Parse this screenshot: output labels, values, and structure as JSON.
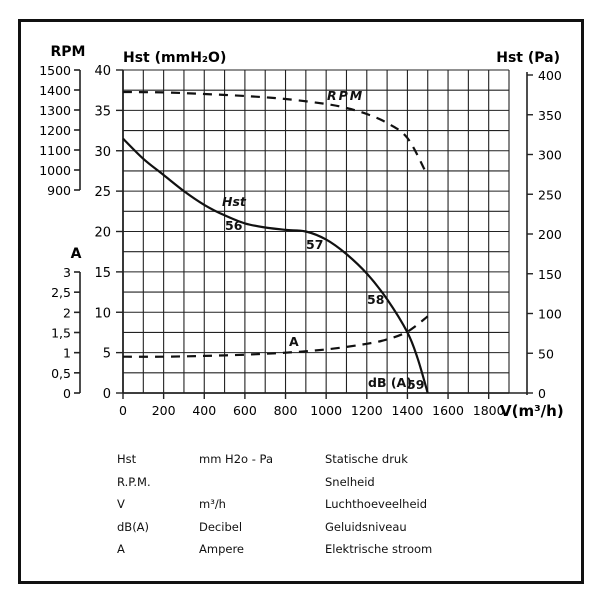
{
  "chart_data": {
    "type": "line",
    "title": "",
    "xlabel": "V(m³/h)",
    "x_ticks": [
      0,
      200,
      400,
      600,
      800,
      1000,
      1200,
      1400,
      1600,
      1800
    ],
    "xlim": [
      0,
      1900
    ],
    "grid": true,
    "axes": {
      "left_primary": {
        "label": "Hst (mmH₂O)",
        "ticks": [
          0,
          5,
          10,
          15,
          20,
          25,
          30,
          35,
          40
        ],
        "range": [
          0,
          40
        ]
      },
      "right": {
        "label": "Hst (Pa)",
        "ticks": [
          0,
          50,
          100,
          150,
          200,
          250,
          300,
          350,
          400
        ],
        "range": [
          0,
          400
        ]
      },
      "left_rpm": {
        "label": "RPM",
        "ticks": [
          900,
          1000,
          1100,
          1200,
          1300,
          1400,
          1500
        ],
        "tick_labels": [
          "900",
          "1000",
          "1100",
          "1200",
          "1300",
          "1400",
          "1500"
        ],
        "range": [
          900,
          1500
        ]
      },
      "left_amp": {
        "label": "A",
        "ticks": [
          0,
          0.5,
          1,
          1.5,
          2,
          2.5,
          3
        ],
        "tick_labels": [
          "0",
          "0,5",
          "1",
          "1,5",
          "2",
          "2,5",
          "3"
        ],
        "range": [
          0,
          3
        ]
      }
    },
    "series": [
      {
        "name": "Hst",
        "axis": "left_primary",
        "style": "solid",
        "x": [
          0,
          100,
          200,
          300,
          400,
          500,
          600,
          700,
          800,
          900,
          1000,
          1100,
          1200,
          1300,
          1400,
          1450,
          1500
        ],
        "values": [
          31.5,
          29.0,
          27.0,
          25.0,
          23.3,
          22.0,
          21.0,
          20.5,
          20.2,
          20.0,
          19.0,
          17.2,
          14.8,
          11.6,
          7.5,
          4.3,
          0
        ]
      },
      {
        "name": "RPM",
        "axis": "left_rpm",
        "style": "dashed",
        "x": [
          0,
          200,
          400,
          600,
          800,
          1000,
          1100,
          1200,
          1300,
          1400,
          1490
        ],
        "values": [
          1390,
          1388,
          1380,
          1370,
          1355,
          1330,
          1310,
          1280,
          1235,
          1160,
          990
        ]
      },
      {
        "name": "A",
        "axis": "left_amp",
        "style": "dashed",
        "x": [
          0,
          200,
          400,
          600,
          800,
          1000,
          1200,
          1300,
          1400,
          1500
        ],
        "values": [
          0.9,
          0.9,
          0.92,
          0.95,
          1.0,
          1.08,
          1.22,
          1.33,
          1.52,
          1.9
        ]
      }
    ],
    "annotations": [
      {
        "text": "Hst",
        "x": 550,
        "y": 23
      },
      {
        "text": "56",
        "x": 530,
        "y": 20.5
      },
      {
        "text": "57",
        "x": 930,
        "y": 18.5
      },
      {
        "text": "58",
        "x": 1230,
        "y": 11.5
      },
      {
        "text": "59",
        "x": 1420,
        "y": 0.8
      },
      {
        "text": "dB (A)",
        "x": 1230,
        "y": 0.8
      },
      {
        "text": "RPM",
        "x": 1100,
        "y_rpm": 1385
      },
      {
        "text": "A",
        "x": 860,
        "y_amp": 1.3
      }
    ]
  },
  "labels": {
    "rpm_axis": "RPM",
    "amp_axis": "A",
    "hst_mm_axis": "Hst (mmH₂O)",
    "hst_pa_axis": "Hst (Pa)",
    "x_axis": "V(m³/h)",
    "curve_hst": "Hst",
    "curve_rpm": "RPM",
    "curve_amp": "A",
    "db_label": "dB (A)",
    "db_56": "56",
    "db_57": "57",
    "db_58": "58",
    "db_59": "59"
  },
  "legend": [
    {
      "symbol": "Hst",
      "unit": "mm H2o - Pa",
      "description": "Statische druk"
    },
    {
      "symbol": "R.P.M.",
      "unit": "",
      "description": "Snelheid"
    },
    {
      "symbol": "V",
      "unit": "m³/h",
      "description": "Luchthoeveelheid"
    },
    {
      "symbol": "dB(A)",
      "unit": "Decibel",
      "description": "Geluidsniveau"
    },
    {
      "symbol": "A",
      "unit": "Ampere",
      "description": "Elektrische stroom"
    }
  ]
}
